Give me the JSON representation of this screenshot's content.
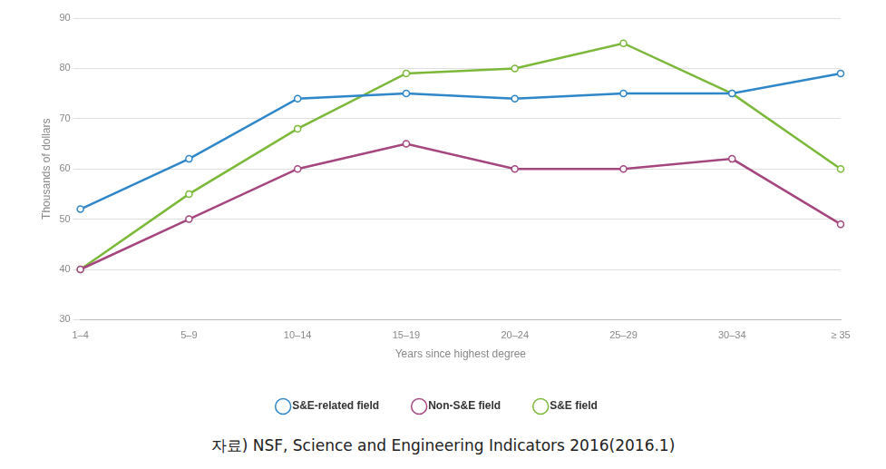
{
  "chart_data": {
    "type": "line",
    "x_label": "Years since highest degree",
    "y_label": "Thousands of dollars",
    "source": "자료) NSF, Science and Engineering Indicators 2016(2016.1)",
    "categories": [
      "1–4",
      "5–9",
      "10–14",
      "15–19",
      "20–24",
      "25–29",
      "30–34",
      "≥ 35"
    ],
    "series": [
      {
        "name": "S&E-related field",
        "color": "#2f86c9",
        "marker": "circle",
        "values": [
          52,
          62,
          74,
          75,
          74,
          75,
          75,
          79
        ]
      },
      {
        "name": "Non-S&E field",
        "color": "#a5467f",
        "marker": "circle",
        "values": [
          40,
          50,
          60,
          65,
          60,
          60,
          62,
          49
        ]
      },
      {
        "name": "S&E field",
        "color": "#7cb83a",
        "marker": "circle",
        "values": [
          40,
          55,
          68,
          79,
          80,
          85,
          75,
          60
        ]
      }
    ],
    "ylim": [
      30,
      90
    ],
    "yticks": [
      30,
      40,
      50,
      60,
      70,
      80,
      90
    ],
    "grid": true,
    "legend": "bottom"
  }
}
